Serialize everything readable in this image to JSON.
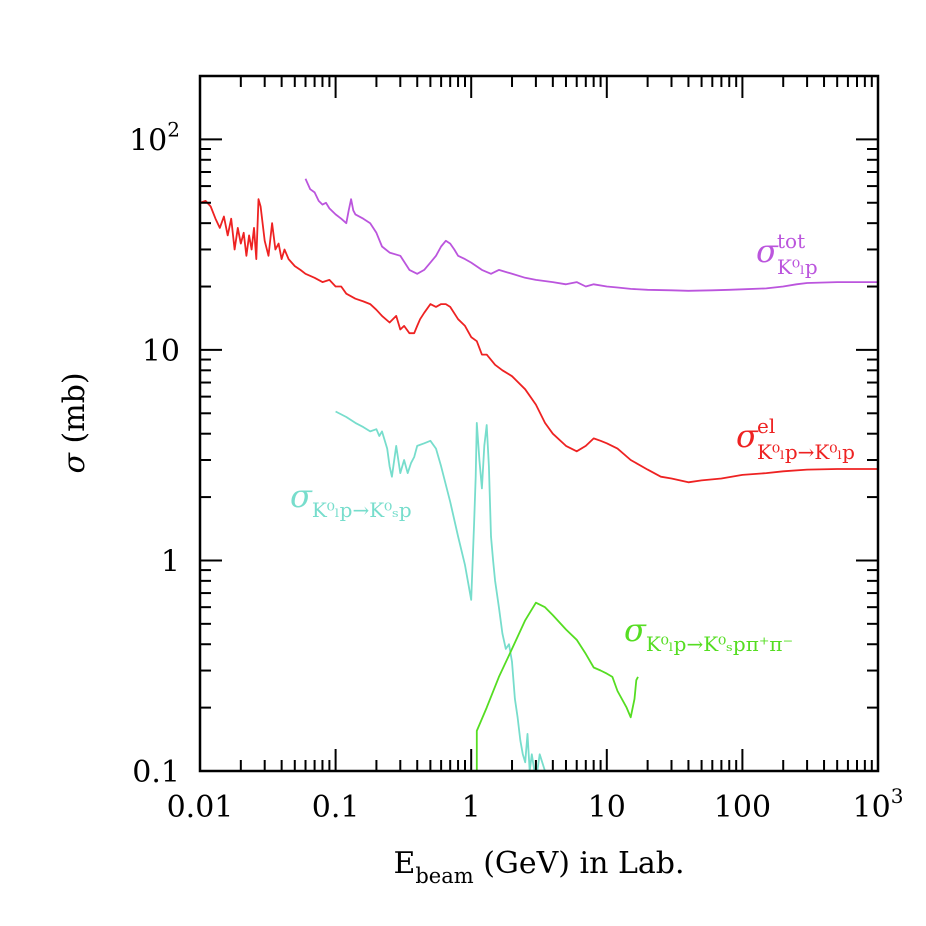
{
  "chart_data": {
    "type": "line",
    "xscale": "log",
    "yscale": "log",
    "xlim": [
      0.01,
      1000
    ],
    "ylim": [
      0.1,
      200
    ],
    "x_ticks": [
      {
        "value": 0.01,
        "label": "0.01"
      },
      {
        "value": 0.1,
        "label": "0.1"
      },
      {
        "value": 1,
        "label": "1"
      },
      {
        "value": 10,
        "label": "10"
      },
      {
        "value": 100,
        "label": "100"
      },
      {
        "value": 1000,
        "label": "10",
        "sup": "3"
      }
    ],
    "y_ticks": [
      {
        "value": 0.1,
        "label": "0.1"
      },
      {
        "value": 1,
        "label": "1"
      },
      {
        "value": 10,
        "label": "10"
      },
      {
        "value": 100,
        "label": "10",
        "sup": "2"
      }
    ],
    "xlabel": {
      "main": "E",
      "sub": "beam",
      "rest": " (GeV) in Lab."
    },
    "ylabel": {
      "symbol": "σ",
      "rest": " (mb)"
    },
    "series": [
      {
        "name": "total",
        "color": "#bb55dd",
        "label": {
          "base": "σ",
          "sup": "tot",
          "sub": "K⁰ₗp"
        },
        "points": [
          [
            0.06,
            65
          ],
          [
            0.065,
            58
          ],
          [
            0.07,
            56
          ],
          [
            0.075,
            51
          ],
          [
            0.08,
            49
          ],
          [
            0.085,
            50
          ],
          [
            0.09,
            47
          ],
          [
            0.1,
            44
          ],
          [
            0.11,
            42
          ],
          [
            0.12,
            40
          ],
          [
            0.125,
            46
          ],
          [
            0.13,
            52
          ],
          [
            0.135,
            46
          ],
          [
            0.14,
            44
          ],
          [
            0.16,
            42
          ],
          [
            0.18,
            40
          ],
          [
            0.2,
            36
          ],
          [
            0.22,
            31
          ],
          [
            0.25,
            29
          ],
          [
            0.3,
            28
          ],
          [
            0.35,
            24
          ],
          [
            0.4,
            23
          ],
          [
            0.45,
            24
          ],
          [
            0.5,
            26
          ],
          [
            0.55,
            28
          ],
          [
            0.6,
            31
          ],
          [
            0.65,
            33
          ],
          [
            0.7,
            32
          ],
          [
            0.75,
            30
          ],
          [
            0.8,
            28
          ],
          [
            0.9,
            27
          ],
          [
            1.0,
            26
          ],
          [
            1.2,
            24
          ],
          [
            1.4,
            23
          ],
          [
            1.6,
            24
          ],
          [
            2,
            23
          ],
          [
            2.5,
            22
          ],
          [
            3,
            21.5
          ],
          [
            4,
            21
          ],
          [
            5,
            20.5
          ],
          [
            6,
            21
          ],
          [
            7,
            20
          ],
          [
            8,
            20.5
          ],
          [
            10,
            20
          ],
          [
            12,
            19.8
          ],
          [
            15,
            19.5
          ],
          [
            20,
            19.3
          ],
          [
            30,
            19.2
          ],
          [
            40,
            19.1
          ],
          [
            60,
            19.2
          ],
          [
            80,
            19.3
          ],
          [
            100,
            19.4
          ],
          [
            150,
            19.6
          ],
          [
            200,
            20.0
          ],
          [
            250,
            20.5
          ],
          [
            300,
            20.8
          ],
          [
            500,
            21
          ],
          [
            1000,
            21
          ]
        ]
      },
      {
        "name": "elastic",
        "color": "#ee2222",
        "label": {
          "base": "σ",
          "sup": "el",
          "sub": "K⁰ₗp→K⁰ₗp"
        },
        "points": [
          [
            0.01,
            50
          ],
          [
            0.011,
            51
          ],
          [
            0.012,
            48
          ],
          [
            0.013,
            42
          ],
          [
            0.014,
            38
          ],
          [
            0.015,
            43
          ],
          [
            0.016,
            35
          ],
          [
            0.017,
            42
          ],
          [
            0.018,
            30
          ],
          [
            0.019,
            38
          ],
          [
            0.02,
            32
          ],
          [
            0.021,
            36
          ],
          [
            0.022,
            28
          ],
          [
            0.023,
            35
          ],
          [
            0.024,
            30
          ],
          [
            0.025,
            38
          ],
          [
            0.026,
            27
          ],
          [
            0.027,
            52
          ],
          [
            0.028,
            48
          ],
          [
            0.03,
            33
          ],
          [
            0.032,
            28
          ],
          [
            0.034,
            40
          ],
          [
            0.036,
            30
          ],
          [
            0.038,
            32
          ],
          [
            0.04,
            27
          ],
          [
            0.042,
            30
          ],
          [
            0.045,
            27
          ],
          [
            0.05,
            25
          ],
          [
            0.055,
            24
          ],
          [
            0.06,
            23
          ],
          [
            0.07,
            22
          ],
          [
            0.08,
            21
          ],
          [
            0.09,
            21.5
          ],
          [
            0.1,
            20
          ],
          [
            0.11,
            20
          ],
          [
            0.12,
            18.5
          ],
          [
            0.14,
            17.5
          ],
          [
            0.16,
            17
          ],
          [
            0.18,
            16.5
          ],
          [
            0.2,
            15.5
          ],
          [
            0.22,
            14.5
          ],
          [
            0.25,
            13.5
          ],
          [
            0.28,
            14.5
          ],
          [
            0.3,
            12.5
          ],
          [
            0.32,
            13
          ],
          [
            0.35,
            12
          ],
          [
            0.38,
            12
          ],
          [
            0.4,
            13
          ],
          [
            0.42,
            14
          ],
          [
            0.45,
            15
          ],
          [
            0.5,
            16.5
          ],
          [
            0.55,
            16
          ],
          [
            0.6,
            16.5
          ],
          [
            0.65,
            16.5
          ],
          [
            0.7,
            16
          ],
          [
            0.8,
            14
          ],
          [
            0.9,
            13
          ],
          [
            1.0,
            11.5
          ],
          [
            1.1,
            11
          ],
          [
            1.2,
            9.5
          ],
          [
            1.3,
            9.5
          ],
          [
            1.5,
            8.5
          ],
          [
            1.7,
            8
          ],
          [
            2,
            7.5
          ],
          [
            2.5,
            6.5
          ],
          [
            3,
            5.5
          ],
          [
            3.5,
            4.5
          ],
          [
            4,
            4
          ],
          [
            5,
            3.5
          ],
          [
            6,
            3.3
          ],
          [
            7,
            3.5
          ],
          [
            8,
            3.8
          ],
          [
            9,
            3.7
          ],
          [
            10,
            3.6
          ],
          [
            12,
            3.4
          ],
          [
            15,
            3.0
          ],
          [
            20,
            2.7
          ],
          [
            25,
            2.5
          ],
          [
            30,
            2.45
          ],
          [
            40,
            2.35
          ],
          [
            50,
            2.4
          ],
          [
            70,
            2.45
          ],
          [
            100,
            2.55
          ],
          [
            150,
            2.6
          ],
          [
            200,
            2.65
          ],
          [
            300,
            2.7
          ],
          [
            500,
            2.72
          ],
          [
            1000,
            2.72
          ]
        ]
      },
      {
        "name": "charge-exchange",
        "color": "#77ddcc",
        "label": {
          "base": "σ",
          "sup": "",
          "sub": "K⁰ₗp→K⁰ₛp"
        },
        "points": [
          [
            0.1,
            5.1
          ],
          [
            0.12,
            4.8
          ],
          [
            0.14,
            4.5
          ],
          [
            0.16,
            4.3
          ],
          [
            0.18,
            4.1
          ],
          [
            0.2,
            4.2
          ],
          [
            0.21,
            3.9
          ],
          [
            0.22,
            4.1
          ],
          [
            0.24,
            3.4
          ],
          [
            0.25,
            2.8
          ],
          [
            0.26,
            2.5
          ],
          [
            0.28,
            3.5
          ],
          [
            0.3,
            2.6
          ],
          [
            0.32,
            3.0
          ],
          [
            0.34,
            2.6
          ],
          [
            0.36,
            2.9
          ],
          [
            0.38,
            3.1
          ],
          [
            0.4,
            3.5
          ],
          [
            0.45,
            3.6
          ],
          [
            0.5,
            3.7
          ],
          [
            0.55,
            3.4
          ],
          [
            0.6,
            2.8
          ],
          [
            0.7,
            1.9
          ],
          [
            0.8,
            1.3
          ],
          [
            0.9,
            0.95
          ],
          [
            1.0,
            0.65
          ],
          [
            1.05,
            1.5
          ],
          [
            1.08,
            2.5
          ],
          [
            1.1,
            4.5
          ],
          [
            1.15,
            3
          ],
          [
            1.2,
            2.2
          ],
          [
            1.25,
            3.5
          ],
          [
            1.3,
            4.4
          ],
          [
            1.35,
            2.8
          ],
          [
            1.4,
            1.3
          ],
          [
            1.45,
            1.0
          ],
          [
            1.5,
            0.8
          ],
          [
            1.6,
            0.6
          ],
          [
            1.7,
            0.45
          ],
          [
            1.8,
            0.38
          ],
          [
            1.9,
            0.4
          ],
          [
            2.0,
            0.33
          ],
          [
            2.1,
            0.22
          ],
          [
            2.2,
            0.18
          ],
          [
            2.3,
            0.14
          ],
          [
            2.4,
            0.12
          ],
          [
            2.5,
            0.11
          ],
          [
            2.6,
            0.15
          ],
          [
            2.7,
            0.1
          ],
          [
            2.8,
            0.12
          ],
          [
            3.0,
            0.09
          ],
          [
            3.2,
            0.12
          ],
          [
            3.5,
            0.1
          ],
          [
            3.7,
            0.08
          ]
        ]
      },
      {
        "name": "pion-production",
        "color": "#55dd22",
        "label": {
          "base": "σ",
          "sup": "",
          "sub": "K⁰ₗp→K⁰ₛpπ⁺π⁻"
        },
        "points": [
          [
            1.1,
            0.1
          ],
          [
            1.1,
            0.155
          ],
          [
            1.3,
            0.2
          ],
          [
            1.6,
            0.28
          ],
          [
            2.0,
            0.38
          ],
          [
            2.5,
            0.52
          ],
          [
            3.0,
            0.63
          ],
          [
            3.5,
            0.6
          ],
          [
            4.0,
            0.55
          ],
          [
            5.0,
            0.47
          ],
          [
            6.0,
            0.42
          ],
          [
            7.0,
            0.36
          ],
          [
            8.0,
            0.31
          ],
          [
            9.0,
            0.3
          ],
          [
            10,
            0.29
          ],
          [
            11,
            0.28
          ],
          [
            12,
            0.24
          ],
          [
            14,
            0.2
          ],
          [
            15,
            0.18
          ],
          [
            16,
            0.22
          ],
          [
            16.5,
            0.27
          ],
          [
            17,
            0.28
          ]
        ]
      }
    ]
  }
}
